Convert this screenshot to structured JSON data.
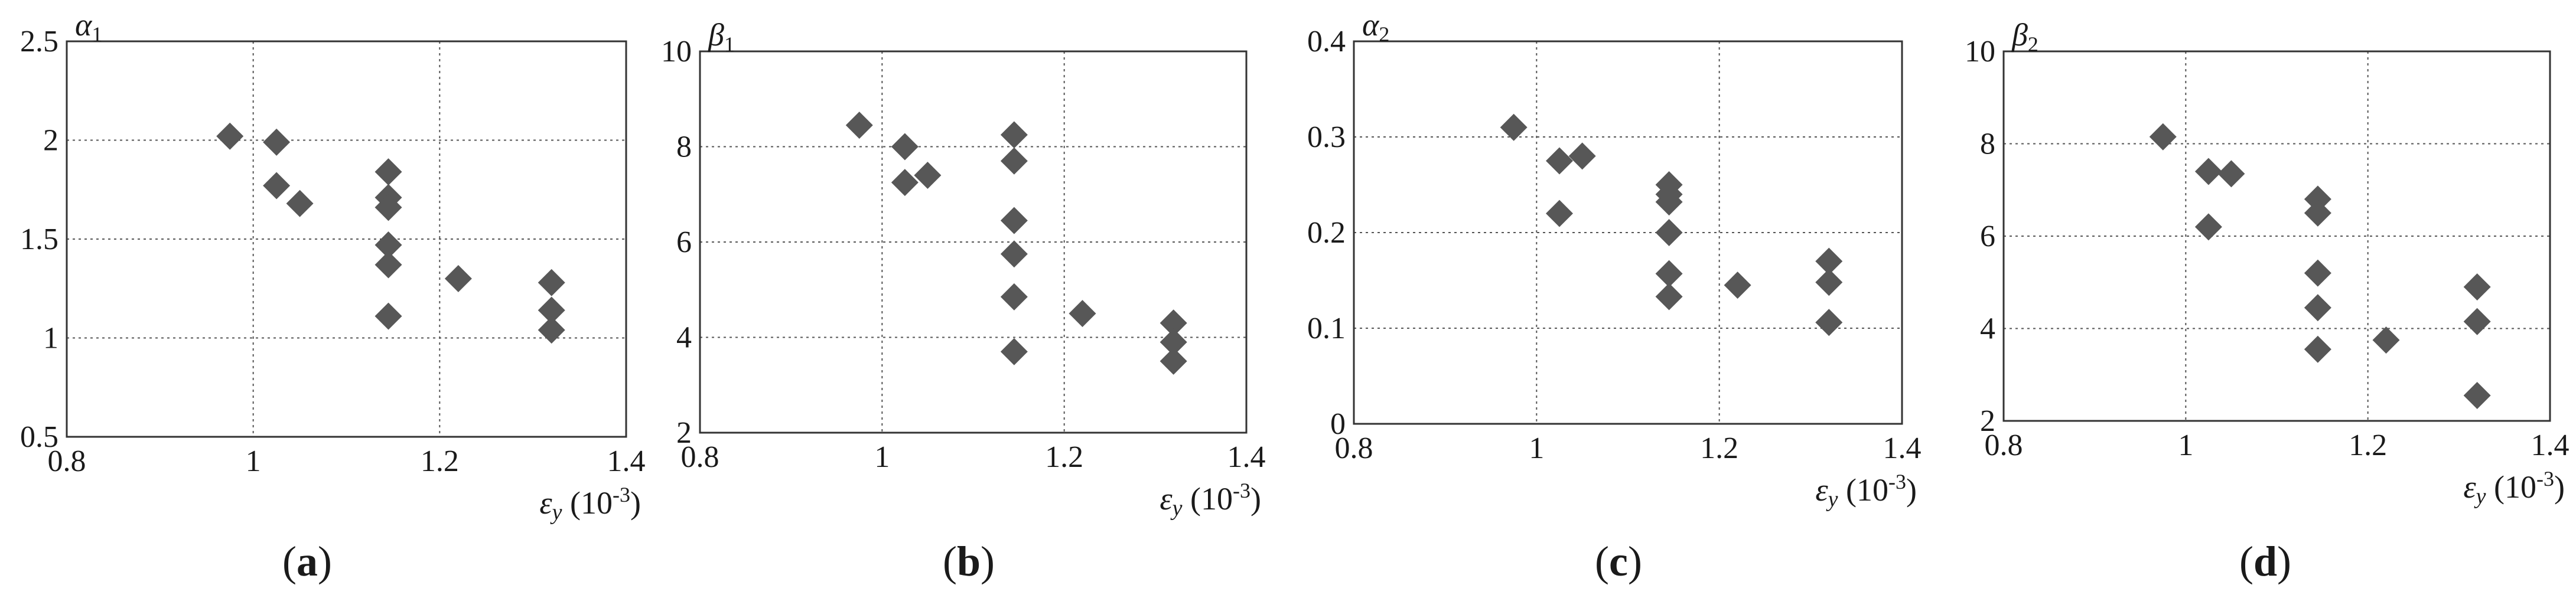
{
  "colors": {
    "marker": "#575757",
    "frame": "#333333",
    "grid": "#555555"
  },
  "x_unit_text": "(10",
  "x_unit_exp": "-3",
  "x_unit_close": ")",
  "x_symbol": "ε",
  "x_symbol_sub": "y",
  "chart_data": [
    {
      "type": "scatter",
      "panel_label": "(a)",
      "panel_letter": "a",
      "ylabel_symbol": "α",
      "ylabel_sub": "1",
      "xlabel": "εy (10-3)",
      "xlim": [
        0.8,
        1.4
      ],
      "ylim": [
        0.5,
        2.5
      ],
      "xticks": [
        "0.8",
        "1",
        "1.2",
        "1.4"
      ],
      "yticks": [
        "0.5",
        "1",
        "1.5",
        "2",
        "2.5"
      ],
      "grid": true,
      "x": [
        0.975,
        1.025,
        1.025,
        1.05,
        1.145,
        1.145,
        1.145,
        1.145,
        1.145,
        1.145,
        1.22,
        1.32,
        1.32,
        1.32
      ],
      "y": [
        2.02,
        1.99,
        1.77,
        1.68,
        1.84,
        1.71,
        1.66,
        1.47,
        1.37,
        1.11,
        1.3,
        1.28,
        1.14,
        1.04
      ]
    },
    {
      "type": "scatter",
      "panel_label": "(b)",
      "panel_letter": "b",
      "ylabel_symbol": "β",
      "ylabel_sub": "1",
      "xlabel": "εy (10-3)",
      "xlim": [
        0.8,
        1.4
      ],
      "ylim": [
        2,
        10
      ],
      "xticks": [
        "0.8",
        "1",
        "1.2",
        "1.4"
      ],
      "yticks": [
        "2",
        "4",
        "6",
        "8",
        "10"
      ],
      "grid": true,
      "x": [
        0.975,
        1.025,
        1.025,
        1.05,
        1.145,
        1.145,
        1.145,
        1.145,
        1.145,
        1.145,
        1.22,
        1.32,
        1.32,
        1.32
      ],
      "y": [
        8.45,
        8.0,
        7.25,
        7.4,
        8.25,
        7.7,
        6.45,
        5.75,
        4.85,
        3.7,
        4.5,
        4.3,
        3.9,
        3.5
      ]
    },
    {
      "type": "scatter",
      "panel_label": "(c)",
      "panel_letter": "c",
      "ylabel_symbol": "α",
      "ylabel_sub": "2",
      "xlabel": "εy (10-3)",
      "xlim": [
        0.8,
        1.4
      ],
      "ylim": [
        0,
        0.4
      ],
      "xticks": [
        "0.8",
        "1",
        "1.2",
        "1.4"
      ],
      "yticks": [
        "0",
        "0.1",
        "0.2",
        "0.3",
        "0.4"
      ],
      "grid": true,
      "x": [
        0.975,
        1.025,
        1.025,
        1.05,
        1.145,
        1.145,
        1.145,
        1.145,
        1.145,
        1.145,
        1.22,
        1.32,
        1.32,
        1.32
      ],
      "y": [
        0.31,
        0.275,
        0.22,
        0.28,
        0.25,
        0.24,
        0.232,
        0.2,
        0.157,
        0.133,
        0.145,
        0.17,
        0.148,
        0.106
      ]
    },
    {
      "type": "scatter",
      "panel_label": "(d)",
      "panel_letter": "d",
      "ylabel_symbol": "β",
      "ylabel_sub": "2",
      "xlabel": "εy (10-3)",
      "xlim": [
        0.8,
        1.4
      ],
      "ylim": [
        2,
        10
      ],
      "xticks": [
        "0.8",
        "1",
        "1.2",
        "1.4"
      ],
      "yticks": [
        "2",
        "4",
        "6",
        "8",
        "10"
      ],
      "grid": true,
      "x": [
        0.975,
        1.025,
        1.025,
        1.05,
        1.145,
        1.145,
        1.145,
        1.145,
        1.145,
        1.22,
        1.32,
        1.32,
        1.32
      ],
      "y": [
        8.15,
        7.4,
        6.2,
        7.35,
        6.8,
        6.5,
        5.2,
        4.45,
        3.55,
        3.75,
        4.9,
        4.15,
        2.55
      ]
    }
  ]
}
